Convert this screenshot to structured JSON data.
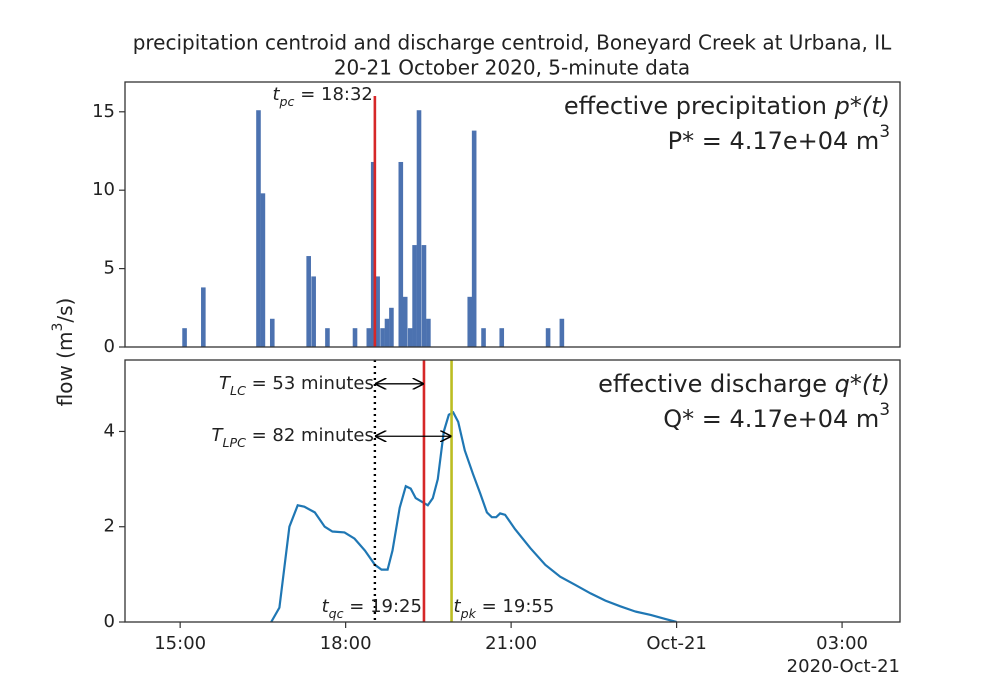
{
  "title": "precipitation centroid and discharge centroid, Boneyard Creek at Urbana, IL",
  "subtitle": "20-21 October 2020, 5-minute data",
  "ylabel": {
    "text": "flow (m",
    "sup": "3",
    "tail": "/s)"
  },
  "x_offset_label": "2020-Oct-21",
  "chart_data": [
    {
      "type": "bar",
      "color": "#4c72b0",
      "x": [
        15.08,
        15.42,
        16.42,
        16.5,
        16.67,
        17.33,
        17.42,
        17.67,
        18.17,
        18.42,
        18.5,
        18.58,
        18.67,
        18.75,
        18.83,
        19.0,
        19.08,
        19.17,
        19.25,
        19.33,
        19.42,
        19.5,
        20.25,
        20.33,
        20.5,
        20.83,
        21.67,
        21.92
      ],
      "values": [
        1.2,
        3.8,
        15.1,
        9.8,
        1.8,
        5.8,
        4.5,
        1.2,
        1.2,
        1.2,
        11.8,
        4.5,
        1.2,
        1.8,
        2.5,
        11.8,
        3.2,
        1.2,
        6.5,
        15.1,
        6.5,
        1.8,
        3.2,
        13.8,
        1.2,
        1.2,
        1.2,
        1.8
      ],
      "xlim": [
        14,
        28.05
      ],
      "ylim": [
        0,
        16.9
      ],
      "yticks": [
        0,
        5,
        10,
        15
      ],
      "label": {
        "text": "effective precipitation ",
        "math": "p*(t)"
      },
      "total": {
        "text": "P* = 4.17e+04 m",
        "sup": "3"
      },
      "vlines": [
        {
          "x": 18.53,
          "color": "#d62728",
          "style": "solid",
          "symbol": "t",
          "subscript": "pc",
          "text": " = 18:32"
        }
      ]
    },
    {
      "type": "line",
      "color": "#1f77b4",
      "x": [
        16.65,
        16.8,
        16.98,
        17.13,
        17.25,
        17.44,
        17.62,
        17.76,
        17.98,
        18.16,
        18.35,
        18.53,
        18.65,
        18.76,
        18.85,
        18.98,
        19.09,
        19.18,
        19.27,
        19.49,
        19.58,
        19.67,
        19.78,
        19.87,
        19.95,
        20.04,
        20.16,
        20.31,
        20.44,
        20.56,
        20.65,
        20.73,
        20.8,
        20.89,
        21.07,
        21.35,
        21.62,
        21.89,
        22.16,
        22.44,
        22.71,
        22.98,
        23.25,
        23.53,
        23.8,
        24.0
      ],
      "values": [
        0,
        0.3,
        2.0,
        2.45,
        2.42,
        2.3,
        2.0,
        1.9,
        1.88,
        1.75,
        1.5,
        1.2,
        1.1,
        1.1,
        1.5,
        2.4,
        2.85,
        2.8,
        2.6,
        2.45,
        2.6,
        3.0,
        4.0,
        4.35,
        4.4,
        4.2,
        3.6,
        3.1,
        2.7,
        2.3,
        2.2,
        2.2,
        2.28,
        2.25,
        1.95,
        1.55,
        1.2,
        0.95,
        0.78,
        0.6,
        0.45,
        0.33,
        0.22,
        0.15,
        0.06,
        0
      ],
      "xlim": [
        14,
        28.05
      ],
      "ylim": [
        0,
        5.5
      ],
      "yticks": [
        0,
        2,
        4
      ],
      "xticks": [
        {
          "value": 15,
          "label": "15:00"
        },
        {
          "value": 18,
          "label": "18:00"
        },
        {
          "value": 21,
          "label": "21:00"
        },
        {
          "value": 24,
          "label": "Oct-21"
        },
        {
          "value": 27,
          "label": "03:00"
        }
      ],
      "label": {
        "text": "effective discharge ",
        "math": "q*(t)"
      },
      "total": {
        "text": "Q* = 4.17e+04 m",
        "sup": "3"
      },
      "vlines": [
        {
          "x": 18.53,
          "color": "#000000",
          "style": "dotted"
        },
        {
          "x": 19.42,
          "color": "#d62728",
          "style": "solid",
          "symbol": "t",
          "subscript": "qc",
          "text": " = 19:25"
        },
        {
          "x": 19.92,
          "color": "#bcbd22",
          "style": "solid",
          "symbol": "t",
          "subscript": "pk",
          "text": " = 19:55"
        }
      ],
      "intervals": [
        {
          "from": 18.53,
          "to": 19.42,
          "y": 5.0,
          "symbol": "T",
          "subscript": "LC",
          "text": " = 53 minutes"
        },
        {
          "from": 18.53,
          "to": 19.92,
          "y": 3.9,
          "symbol": "T",
          "subscript": "LPC",
          "text": " = 82 minutes"
        }
      ]
    }
  ]
}
